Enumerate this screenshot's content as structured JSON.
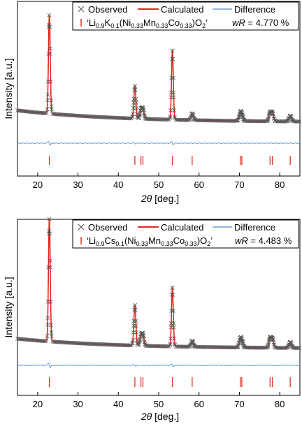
{
  "colors": {
    "observed": "#555555",
    "calculated": "#e0261c",
    "difference": "#6e9fd6",
    "bragg": "#e0261c"
  },
  "chart_data": [
    {
      "type": "line",
      "xlabel_main": "2θ",
      "xlabel_unit": " [deg.]",
      "ylabel": "Intensity [a.u.]",
      "xlim": [
        15,
        85
      ],
      "xticks": [
        "20",
        "30",
        "40",
        "50",
        "60",
        "70",
        "80"
      ],
      "xtick_values": [
        20,
        30,
        40,
        50,
        60,
        70,
        80
      ],
      "legend": {
        "observed": "Observed",
        "calculated": "Calculated",
        "difference": "Difference",
        "phase_prefix": "‘Li",
        "phase_li_sub": "0.9",
        "phase_dopant": "K",
        "phase_dopant_sub": "0.1",
        "phase_mid": "(Ni",
        "phase_ni_sub": "0.33",
        "phase_mn": "Mn",
        "phase_mn_sub": "0.33",
        "phase_co": "Co",
        "phase_co_sub": "0.33",
        "phase_close": ")O",
        "phase_o_sub": "2",
        "phase_end": "’",
        "wr_label": "wR",
        "wr_value": " = 4.770 %"
      },
      "baseline": 0.12,
      "peaks": [
        {
          "x": 22.9,
          "height": 1.0,
          "width": 0.22
        },
        {
          "x": 44.1,
          "height": 0.33,
          "width": 0.25
        },
        {
          "x": 45.6,
          "height": 0.09,
          "width": 0.25
        },
        {
          "x": 46.1,
          "height": 0.1,
          "width": 0.25
        },
        {
          "x": 53.4,
          "height": 0.7,
          "width": 0.22
        },
        {
          "x": 58.3,
          "height": 0.07,
          "width": 0.28
        },
        {
          "x": 70.2,
          "height": 0.07,
          "width": 0.28
        },
        {
          "x": 70.6,
          "height": 0.06,
          "width": 0.28
        },
        {
          "x": 77.6,
          "height": 0.09,
          "width": 0.28
        },
        {
          "x": 78.2,
          "height": 0.08,
          "width": 0.28
        },
        {
          "x": 82.6,
          "height": 0.06,
          "width": 0.3
        }
      ],
      "bragg_positions": [
        22.9,
        44.1,
        45.6,
        46.1,
        53.4,
        58.3,
        70.2,
        70.6,
        77.6,
        78.2,
        82.6
      ]
    },
    {
      "type": "line",
      "xlabel_main": "2θ",
      "xlabel_unit": " [deg.]",
      "ylabel": "Intensity [a.u.]",
      "xlim": [
        15,
        85
      ],
      "xticks": [
        "20",
        "30",
        "40",
        "50",
        "60",
        "70",
        "80"
      ],
      "xtick_values": [
        20,
        30,
        40,
        50,
        60,
        70,
        80
      ],
      "legend": {
        "observed": "Observed",
        "calculated": "Calculated",
        "difference": "Difference",
        "phase_prefix": "‘Li",
        "phase_li_sub": "0.9",
        "phase_dopant": "Cs",
        "phase_dopant_sub": "0.1",
        "phase_mid": "(Ni",
        "phase_ni_sub": "0.33",
        "phase_mn": "Mn",
        "phase_mn_sub": "0.33",
        "phase_co": "Co",
        "phase_co_sub": "0.33",
        "phase_close": ")O",
        "phase_o_sub": "2",
        "phase_end": "’",
        "wr_label": "wR",
        "wr_value": " = 4.483 %"
      },
      "baseline": 0.08,
      "peaks": [
        {
          "x": 22.9,
          "height": 1.0,
          "width": 0.22
        },
        {
          "x": 44.1,
          "height": 0.33,
          "width": 0.25
        },
        {
          "x": 45.6,
          "height": 0.08,
          "width": 0.25
        },
        {
          "x": 46.1,
          "height": 0.09,
          "width": 0.25
        },
        {
          "x": 53.4,
          "height": 0.48,
          "width": 0.22
        },
        {
          "x": 58.3,
          "height": 0.05,
          "width": 0.28
        },
        {
          "x": 70.2,
          "height": 0.06,
          "width": 0.28
        },
        {
          "x": 70.6,
          "height": 0.05,
          "width": 0.28
        },
        {
          "x": 77.6,
          "height": 0.08,
          "width": 0.28
        },
        {
          "x": 78.2,
          "height": 0.07,
          "width": 0.28
        },
        {
          "x": 82.6,
          "height": 0.05,
          "width": 0.3
        }
      ],
      "bragg_positions": [
        22.9,
        44.1,
        45.6,
        46.1,
        53.4,
        58.3,
        70.2,
        70.6,
        77.6,
        78.2,
        82.6
      ]
    }
  ]
}
